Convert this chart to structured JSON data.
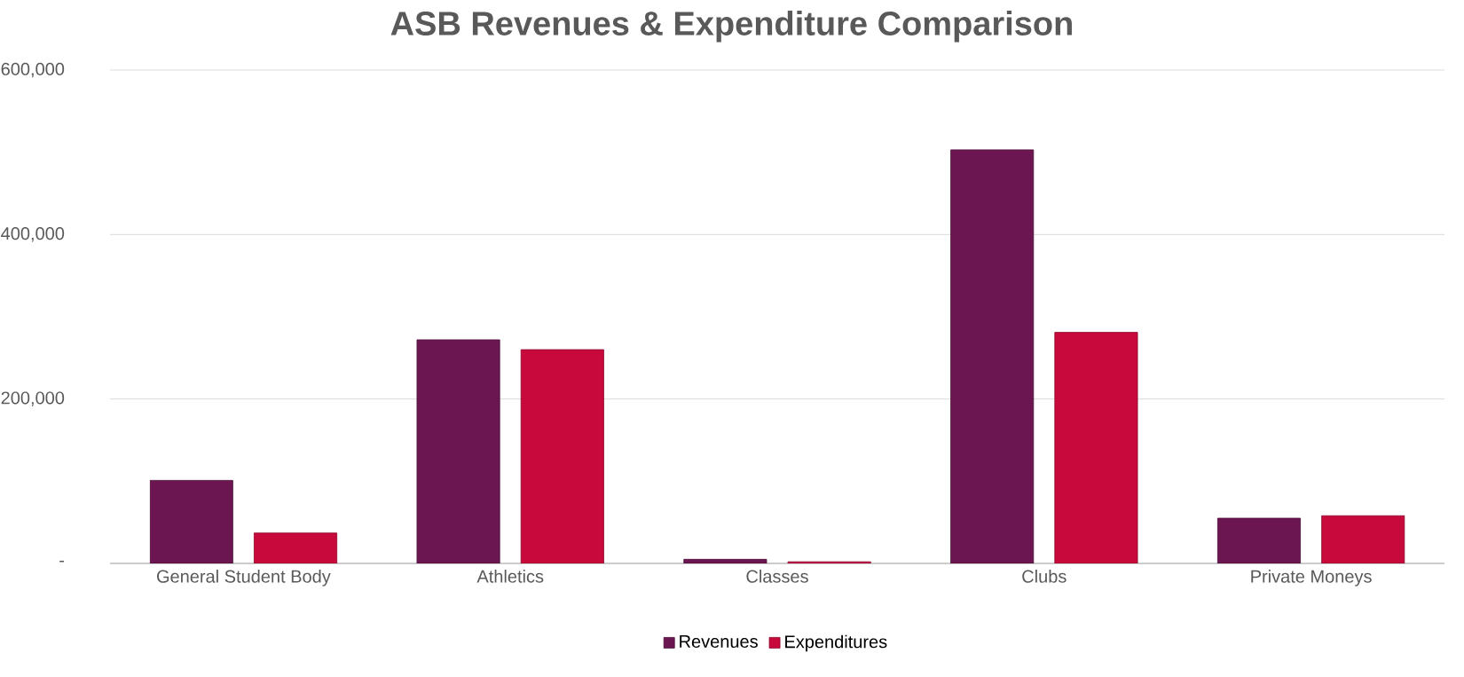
{
  "chart_data": {
    "type": "bar",
    "title": "ASB Revenues & Expenditure Comparison",
    "categories": [
      "General Student Body",
      "Athletics",
      "Classes",
      "Clubs",
      "Private Moneys"
    ],
    "series": [
      {
        "name": "Revenues",
        "color": "#6b1650",
        "values": [
          101000,
          272000,
          5000,
          503000,
          55000
        ]
      },
      {
        "name": "Expenditures",
        "color": "#c8093c",
        "values": [
          37000,
          260000,
          2000,
          281000,
          58000
        ]
      }
    ],
    "ylim": [
      0,
      600000
    ],
    "yticks": [
      {
        "value": 0,
        "label": "-"
      },
      {
        "value": 200000,
        "label": "200,000"
      },
      {
        "value": 400000,
        "label": "400,000"
      },
      {
        "value": 600000,
        "label": "600,000"
      }
    ],
    "grid": "y",
    "legend": "bottom"
  }
}
